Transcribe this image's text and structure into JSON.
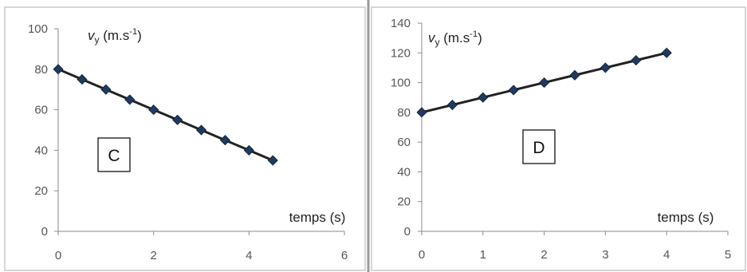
{
  "chart_data": [
    {
      "type": "line",
      "box_label": "C",
      "ylabel_var": "v",
      "ylabel_sub": "y",
      "ylabel_unit_pre": " (m.s",
      "ylabel_unit_sup": "-1",
      "ylabel_unit_post": ")",
      "xlabel": "temps (s)",
      "xlim": [
        0,
        6
      ],
      "ylim": [
        0,
        100
      ],
      "xticks": [
        0,
        2,
        4,
        6
      ],
      "yticks": [
        0,
        20,
        40,
        60,
        80,
        100
      ],
      "grid": false,
      "colors": {
        "line": "#222222",
        "marker": "#1f3a5f"
      },
      "series": [
        {
          "x": [
            0,
            0.5,
            1,
            1.5,
            2,
            2.5,
            3,
            3.5,
            4,
            4.5
          ],
          "y": [
            80,
            75,
            70,
            65,
            60,
            55,
            50,
            45,
            40,
            35
          ]
        }
      ]
    },
    {
      "type": "line",
      "box_label": "D",
      "ylabel_var": "v",
      "ylabel_sub": "y",
      "ylabel_unit_pre": " (m.s",
      "ylabel_unit_sup": "-1",
      "ylabel_unit_post": ")",
      "xlabel": "temps (s)",
      "xlim": [
        0,
        5
      ],
      "ylim": [
        0,
        140
      ],
      "xticks": [
        0,
        1,
        2,
        3,
        4,
        5
      ],
      "yticks": [
        0,
        20,
        40,
        60,
        80,
        100,
        120,
        140
      ],
      "grid": false,
      "colors": {
        "line": "#222222",
        "marker": "#1f3a5f"
      },
      "series": [
        {
          "x": [
            0,
            0.5,
            1,
            1.5,
            2,
            2.5,
            3,
            3.5,
            4
          ],
          "y": [
            80,
            85,
            90,
            95,
            100,
            105,
            110,
            115,
            120
          ]
        }
      ]
    }
  ]
}
